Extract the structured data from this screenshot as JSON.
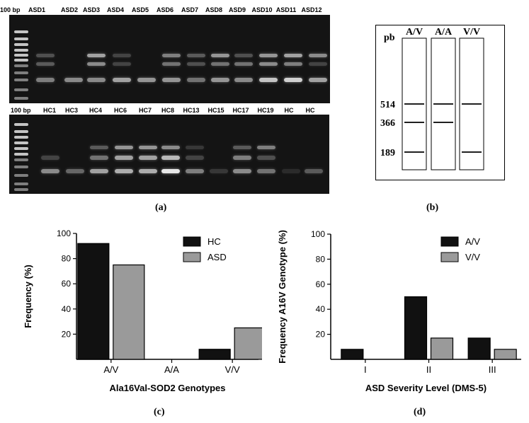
{
  "panel_a": {
    "label": "(a)",
    "top_gel": {
      "marker_label": "100 bp",
      "lanes": [
        "ASD1",
        "ASD2",
        "ASD3",
        "ASD4",
        "ASD5",
        "ASD6",
        "ASD7",
        "ASD8",
        "ASD9",
        "ASD10",
        "ASD11",
        "ASD12"
      ]
    },
    "bottom_gel": {
      "marker_label": "100 bp",
      "lanes": [
        "HC1",
        "HC3",
        "HC4",
        "HC6",
        "HC7",
        "HC8",
        "HC13",
        "HC15",
        "HC17",
        "HC19",
        "HC",
        "HC"
      ]
    }
  },
  "panel_b": {
    "label": "(b)",
    "unit_label": "pb",
    "lanes": [
      "A/V",
      "A/A",
      "V/V"
    ],
    "band_sizes": [
      "514",
      "366",
      "189"
    ],
    "genotype_bands": {
      "A/V": [
        "514",
        "366",
        "189"
      ],
      "A/A": [
        "514",
        "366"
      ],
      "V/V": [
        "514",
        "189"
      ]
    }
  },
  "panel_c": {
    "label": "(c)",
    "chart_data": {
      "type": "bar",
      "categories": [
        "A/V",
        "A/A",
        "V/V"
      ],
      "series": [
        {
          "name": "HC",
          "values": [
            92,
            0,
            8
          ],
          "color": "#111111"
        },
        {
          "name": "ASD",
          "values": [
            75,
            0,
            25
          ],
          "color": "#9a9a9a"
        }
      ],
      "xlabel": "Ala16Val-SOD2 Genotypes",
      "ylabel": "Frequency (%)",
      "ylim": [
        0,
        100
      ],
      "yticks": [
        20,
        40,
        60,
        80,
        100
      ],
      "legend": "top-right",
      "grid": false
    }
  },
  "panel_d": {
    "label": "(d)",
    "chart_data": {
      "type": "bar",
      "categories": [
        "I",
        "II",
        "III"
      ],
      "series": [
        {
          "name": "A/V",
          "values": [
            8,
            50,
            17
          ],
          "color": "#111111"
        },
        {
          "name": "V/V",
          "values": [
            0,
            17,
            8
          ],
          "color": "#9a9a9a"
        }
      ],
      "xlabel": "ASD Severity Level (DMS-5)",
      "ylabel": "Frequency A16V Genotype (%)",
      "ylim": [
        0,
        100
      ],
      "yticks": [
        20,
        40,
        60,
        80,
        100
      ],
      "legend": "top-right",
      "grid": false
    }
  }
}
